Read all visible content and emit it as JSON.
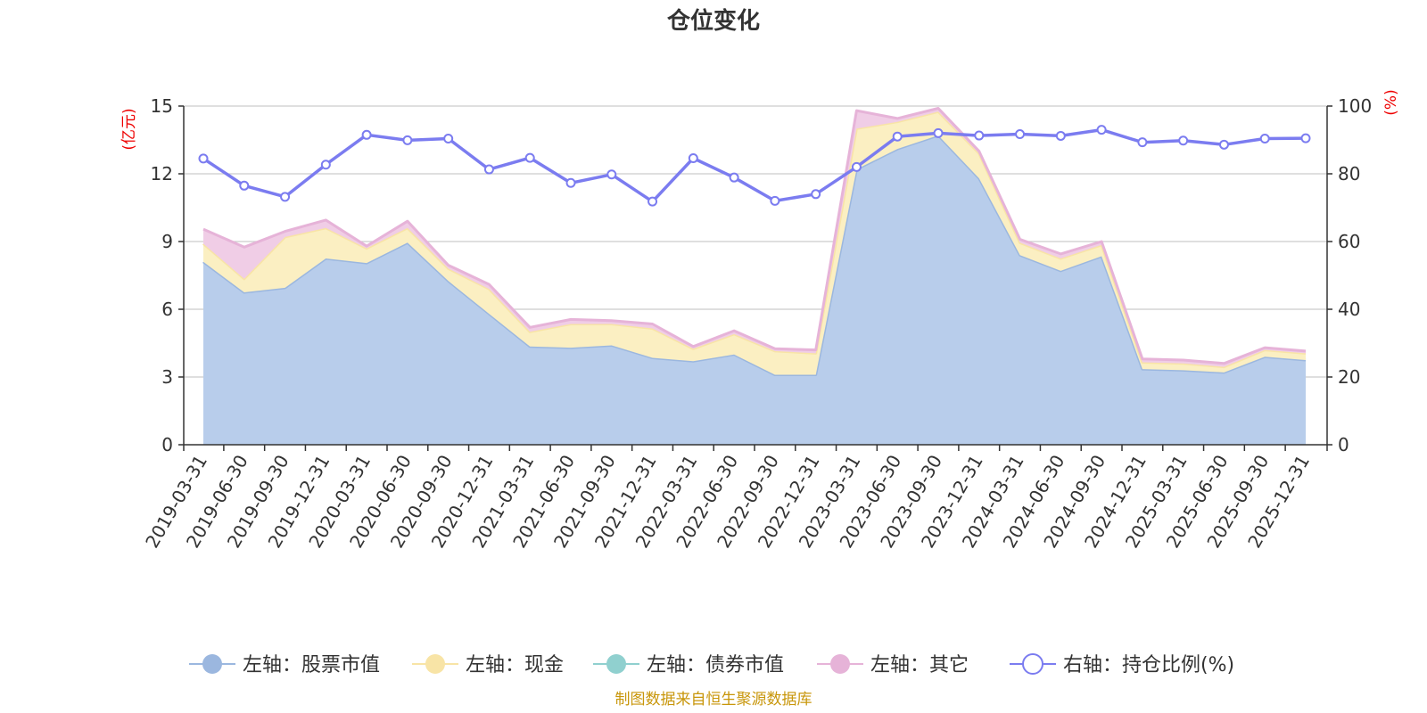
{
  "chart_data": {
    "type": "area",
    "title": "仓位变化",
    "left_axis": {
      "unit": "(亿元)",
      "ylim": [
        0,
        15
      ],
      "ticks": [
        0,
        3,
        6,
        9,
        12,
        15
      ]
    },
    "right_axis": {
      "unit": "(%)",
      "ylim": [
        0,
        100
      ],
      "ticks": [
        0,
        20,
        40,
        60,
        80,
        100
      ]
    },
    "categories": [
      "2019-03-31",
      "2019-06-30",
      "2019-09-30",
      "2019-12-31",
      "2020-03-31",
      "2020-06-30",
      "2020-09-30",
      "2020-12-31",
      "2021-03-31",
      "2021-06-30",
      "2021-09-30",
      "2021-12-31",
      "2022-03-31",
      "2022-06-30",
      "2022-09-30",
      "2022-12-31",
      "2023-03-31",
      "2023-06-30",
      "2023-09-30",
      "2023-12-31",
      "2024-03-31",
      "2024-06-30",
      "2024-09-30",
      "2024-12-31",
      "2025-03-31",
      "2025-06-30",
      "2025-09-30",
      "2025-12-31"
    ],
    "series": [
      {
        "name": "左轴：股票市值",
        "axis": "left",
        "stack": true,
        "color": "#9bb7df",
        "fill": "#b8cdeb",
        "values": [
          8.1,
          6.75,
          6.95,
          8.25,
          8.05,
          8.95,
          7.25,
          5.8,
          4.35,
          4.3,
          4.4,
          3.85,
          3.7,
          4.0,
          3.1,
          3.1,
          12.2,
          13.1,
          13.7,
          11.8,
          8.4,
          7.7,
          8.35,
          3.35,
          3.3,
          3.2,
          3.9,
          3.75
        ]
      },
      {
        "name": "左轴：现金",
        "axis": "left",
        "stack": true,
        "color": "#f8e4a6",
        "fill": "#fbefc2",
        "values": [
          0.8,
          0.6,
          2.25,
          1.35,
          0.65,
          0.65,
          0.55,
          1.1,
          0.65,
          1.05,
          0.95,
          1.3,
          0.55,
          0.9,
          1.05,
          0.95,
          1.8,
          1.2,
          1.05,
          1.1,
          0.55,
          0.55,
          0.5,
          0.3,
          0.3,
          0.25,
          0.3,
          0.3
        ]
      },
      {
        "name": "左轴：债券市值",
        "axis": "left",
        "stack": true,
        "color": "#90d0cf",
        "fill": "#a8dcdb",
        "values": [
          0,
          0,
          0,
          0,
          0,
          0,
          0,
          0,
          0,
          0,
          0,
          0,
          0,
          0,
          0,
          0,
          0,
          0,
          0,
          0,
          0,
          0,
          0,
          0,
          0,
          0,
          0,
          0
        ]
      },
      {
        "name": "左轴：其它",
        "axis": "left",
        "stack": true,
        "color": "#e6b3d8",
        "fill": "#f0cde6",
        "values": [
          0.65,
          1.4,
          0.25,
          0.35,
          0.1,
          0.3,
          0.15,
          0.2,
          0.2,
          0.2,
          0.15,
          0.2,
          0.1,
          0.15,
          0.1,
          0.15,
          0.8,
          0.15,
          0.15,
          0.1,
          0.15,
          0.2,
          0.15,
          0.15,
          0.15,
          0.15,
          0.1,
          0.1
        ]
      },
      {
        "name": "右轴：持仓比例(%)",
        "axis": "right",
        "stack": false,
        "color": "#7b7cf0",
        "values": [
          84.5,
          76.5,
          73.2,
          82.7,
          91.5,
          89.9,
          90.4,
          81.3,
          84.7,
          77.3,
          79.8,
          71.8,
          84.6,
          78.9,
          72.0,
          74.0,
          82.0,
          91.0,
          92.0,
          91.3,
          91.7,
          91.2,
          93.0,
          89.3,
          89.8,
          88.6,
          90.4,
          90.5
        ]
      }
    ],
    "legend_position": "bottom",
    "grid": true,
    "source": "制图数据来自恒生聚源数据库"
  }
}
